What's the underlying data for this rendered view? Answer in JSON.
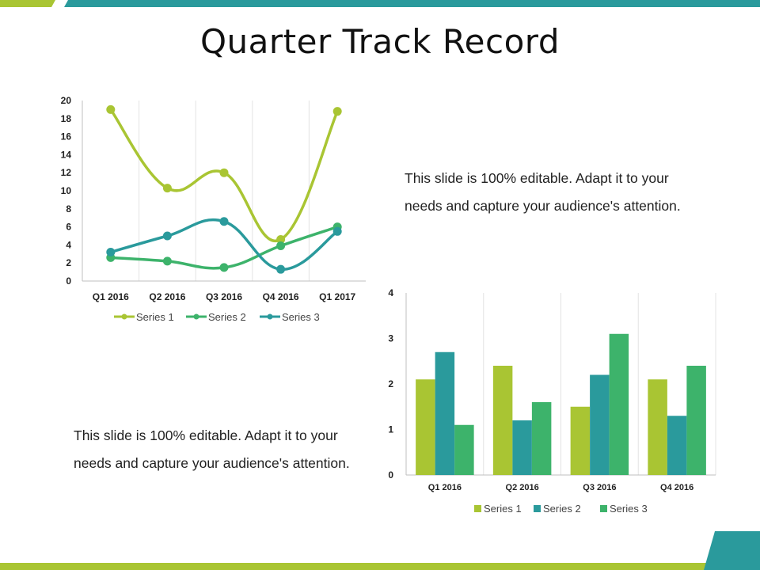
{
  "title": "Quarter Track Record",
  "paragraphs": {
    "top_line1": "This slide is 100% editable. Adapt it to your",
    "top_line2": "needs and capture your audience's attention.",
    "bottom_line1": "This slide is 100% editable. Adapt it to your",
    "bottom_line2": "needs and capture your audience's attention."
  },
  "colors": {
    "green_light": "#a9c533",
    "green_mid": "#3db36b",
    "teal": "#2a9a9c",
    "gray_axis": "#bfbfbf"
  },
  "chart_data": [
    {
      "type": "line",
      "categories": [
        "Q1 2016",
        "Q2 2016",
        "Q3 2016",
        "Q4 2016",
        "Q1 2017"
      ],
      "ylim": [
        0,
        20
      ],
      "yticks": [
        0,
        2,
        4,
        6,
        8,
        10,
        12,
        14,
        16,
        18,
        20
      ],
      "grid": "vertical",
      "legend": "bottom",
      "series": [
        {
          "name": "Series 1",
          "color": "#a9c533",
          "values": [
            19,
            10.3,
            12,
            4.6,
            18.8
          ]
        },
        {
          "name": "Series 2",
          "color": "#3db36b",
          "values": [
            2.6,
            2.2,
            1.5,
            3.9,
            6
          ]
        },
        {
          "name": "Series 3",
          "color": "#2a9a9c",
          "values": [
            3.2,
            5,
            6.6,
            1.3,
            5.5
          ]
        }
      ]
    },
    {
      "type": "bar",
      "categories": [
        "Q1 2016",
        "Q2 2016",
        "Q3 2016",
        "Q4 2016"
      ],
      "ylim": [
        0,
        4
      ],
      "yticks": [
        0,
        1,
        2,
        3,
        4
      ],
      "grid": "vertical",
      "legend": "bottom",
      "series": [
        {
          "name": "Series 1",
          "color": "#a9c533",
          "values": [
            2.1,
            2.4,
            1.5,
            2.1
          ]
        },
        {
          "name": "Series 2",
          "color": "#2a9a9c",
          "values": [
            2.7,
            1.2,
            2.2,
            1.3
          ]
        },
        {
          "name": "Series 3",
          "color": "#3db36b",
          "values": [
            1.1,
            1.6,
            3.1,
            2.4
          ]
        }
      ]
    }
  ]
}
